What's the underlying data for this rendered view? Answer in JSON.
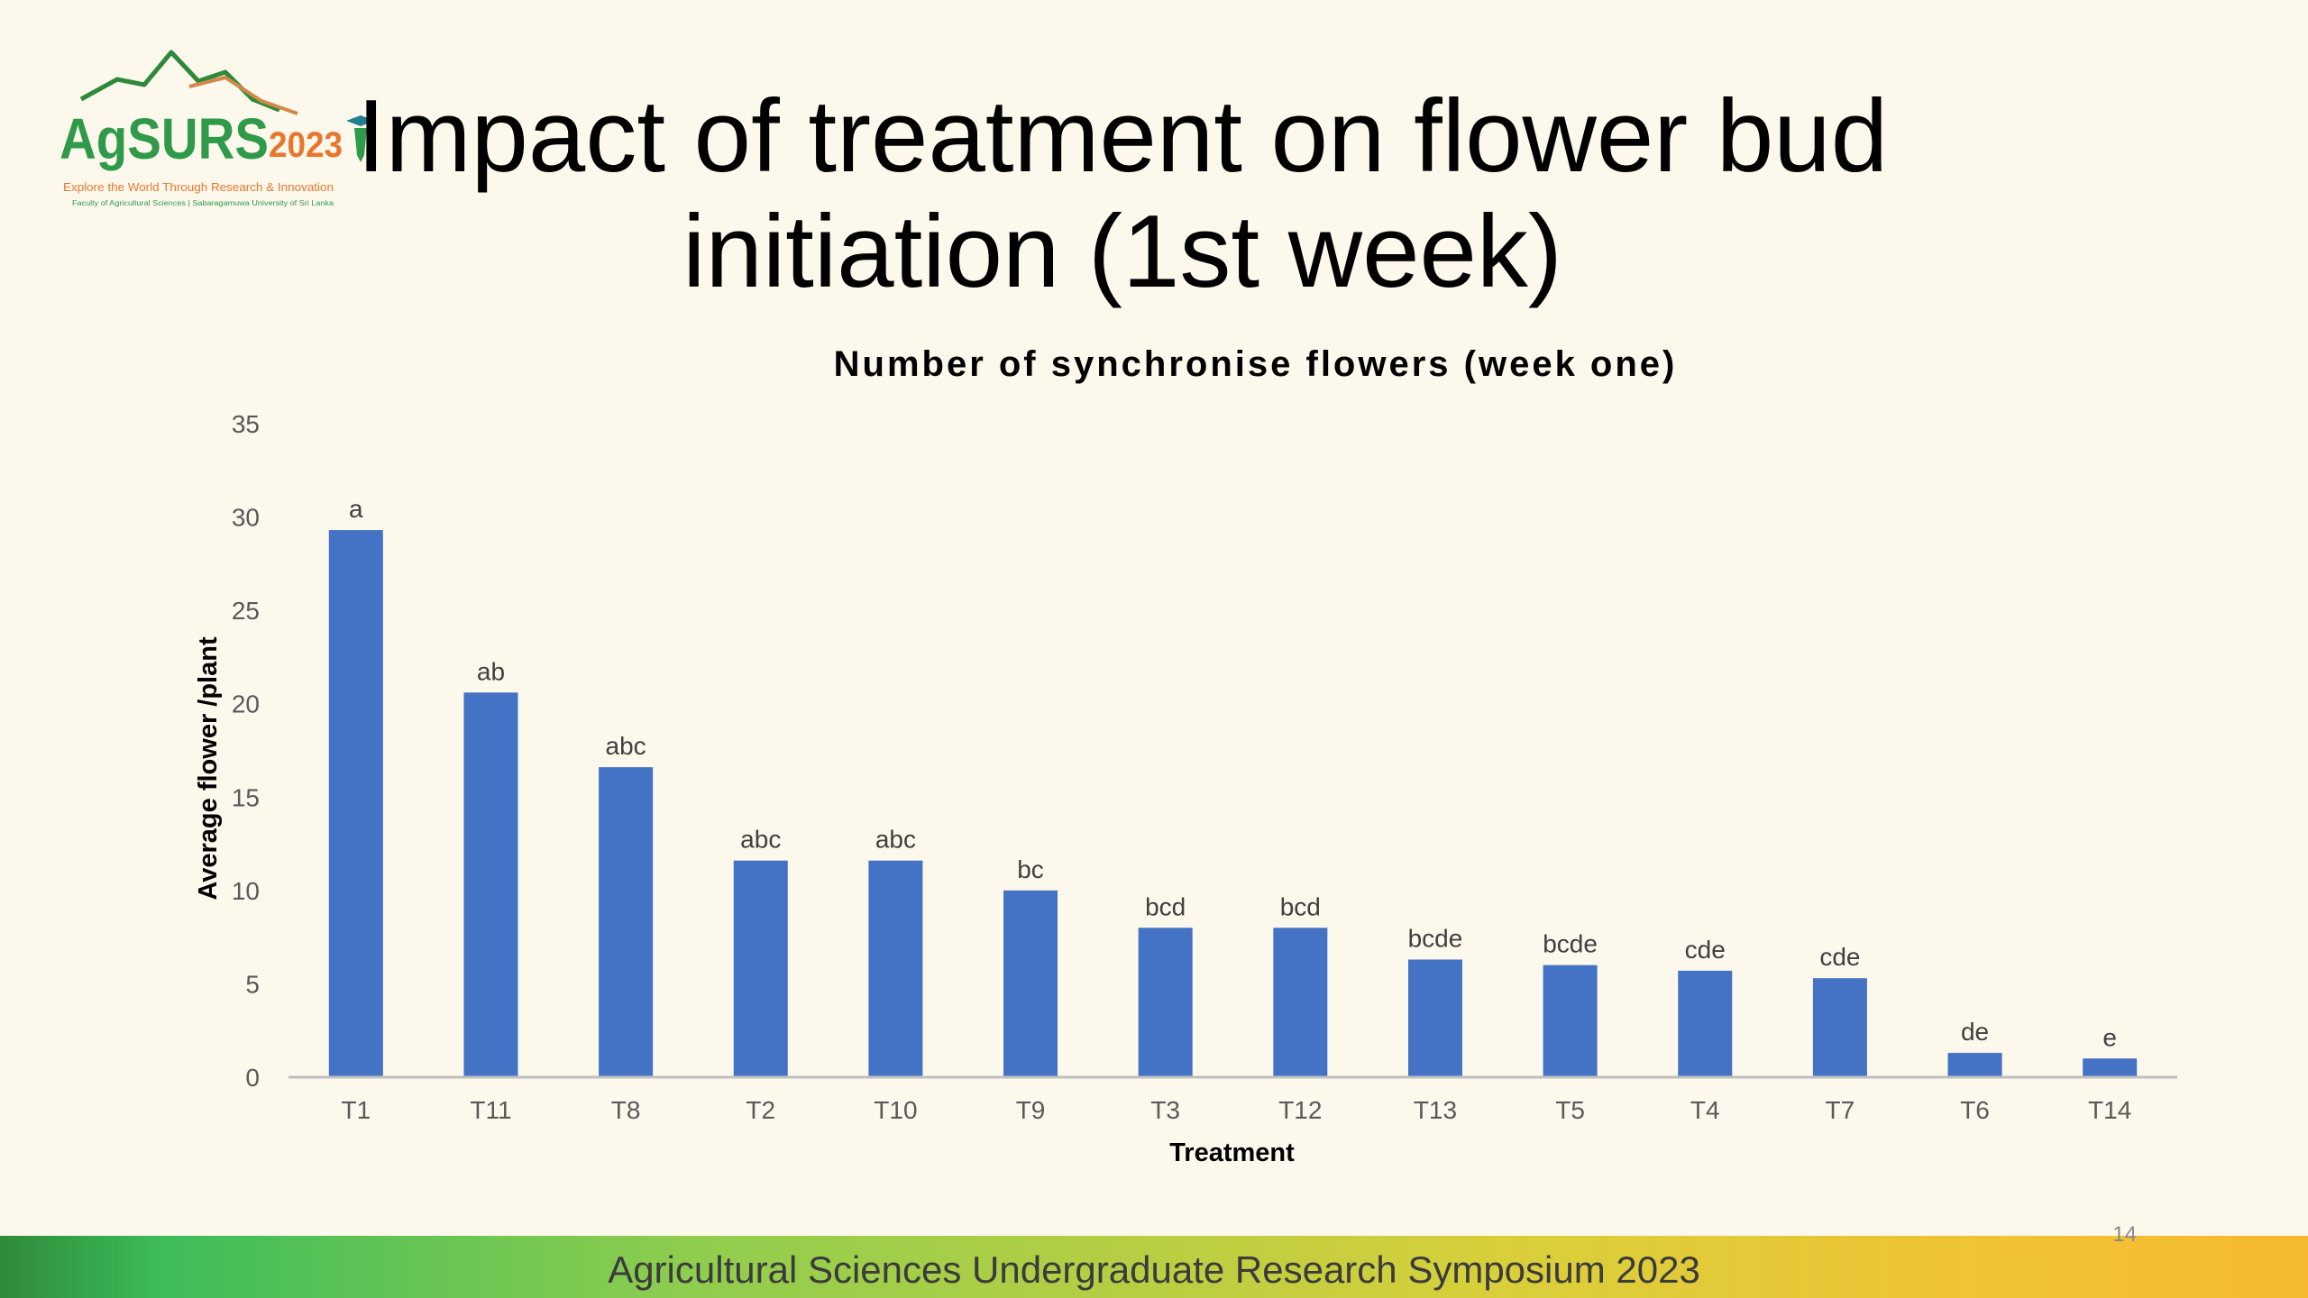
{
  "slide": {
    "title": "Impact of treatment on flower bud initiation (1st week)",
    "page_number": "14",
    "footer": "Agricultural Sciences Undergraduate Research Symposium 2023"
  },
  "logo": {
    "name": "AgSURS",
    "year": "2023",
    "tagline": "Explore the World Through Research & Innovation",
    "affiliation": "Faculty of Agricultural Sciences | Sabaragamuwa University of Sri Lanka",
    "colors": {
      "green": "#3e9e3e",
      "teal": "#1f7f8f",
      "orange": "#e8762c"
    }
  },
  "chart_data": {
    "type": "bar",
    "title": "Number of synchronise flowers (week one)",
    "xlabel": "Treatment",
    "ylabel": "Average flower /plant",
    "ylim": [
      0,
      35
    ],
    "yticks": [
      0,
      5,
      10,
      15,
      20,
      25,
      30,
      35
    ],
    "grid": false,
    "bar_color": "#4472c4",
    "categories": [
      "T1",
      "T11",
      "T8",
      "T2",
      "T10",
      "T9",
      "T3",
      "T12",
      "T13",
      "T5",
      "T4",
      "T7",
      "T6",
      "T14"
    ],
    "values": [
      29.3,
      20.6,
      16.6,
      11.6,
      11.6,
      10.0,
      8.0,
      8.0,
      6.3,
      6.0,
      5.7,
      5.3,
      1.3,
      1.0
    ],
    "data_labels": [
      "a",
      "ab",
      "abc",
      "abc",
      "abc",
      "bc",
      "bcd",
      "bcd",
      "bcde",
      "bcde",
      "cde",
      "cde",
      "de",
      "e"
    ]
  }
}
